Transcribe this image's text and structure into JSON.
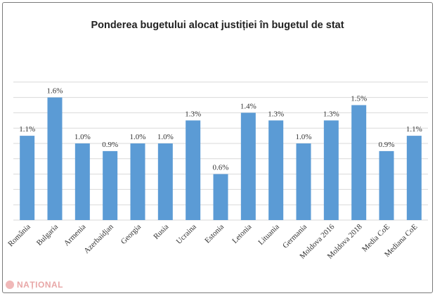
{
  "chart_data": {
    "type": "bar",
    "title": "Ponderea bugetului alocat justiției în bugetul de stat",
    "xlabel": "",
    "ylabel": "",
    "ylim": [
      0,
      1.8
    ],
    "grid": true,
    "legend": "none",
    "bar_color": "#5b9bd5",
    "categories": [
      "România",
      "Bulgaria",
      "Armenia",
      "Azerbaidjan",
      "Georgia",
      "Rusia",
      "Ucraina",
      "Estonia",
      "Letonia",
      "Lituania",
      "Germania",
      "Moldova 2016",
      "Moldova 2018",
      "Media CoE",
      "Mediana CoE"
    ],
    "values": [
      1.1,
      1.6,
      1.0,
      0.9,
      1.0,
      1.0,
      1.3,
      0.6,
      1.4,
      1.3,
      1.0,
      1.3,
      1.5,
      0.9,
      1.1
    ],
    "data_labels": [
      "1.1%",
      "1.6%",
      "1.0%",
      "0.9%",
      "1.0%",
      "1.0%",
      "1.3%",
      "0.6%",
      "1.4%",
      "1.3%",
      "1.0%",
      "1.3%",
      "1.5%",
      "0.9%",
      "1.1%"
    ]
  },
  "watermark": {
    "text": "NAȚIONAL"
  }
}
